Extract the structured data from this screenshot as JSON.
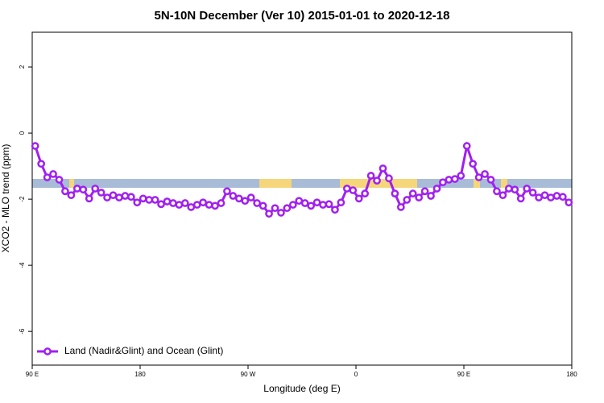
{
  "chart_data": {
    "type": "line",
    "title": "5N-10N December (Ver 10)   2015-01-01 to 2020-12-18",
    "x_label": "Longitude (deg E)",
    "y_label": "XCO2 - MLO trend (ppm)",
    "x": [
      92.5,
      97.5,
      102.5,
      107.5,
      112.5,
      117.5,
      122.5,
      127.5,
      132.5,
      137.5,
      142.5,
      147.5,
      152.5,
      157.5,
      162.5,
      167.5,
      172.5,
      177.5,
      182.5,
      187.5,
      192.5,
      197.5,
      202.5,
      207.5,
      212.5,
      217.5,
      222.5,
      227.5,
      232.5,
      237.5,
      242.5,
      247.5,
      252.5,
      257.5,
      262.5,
      267.5,
      272.5,
      277.5,
      282.5,
      287.5,
      292.5,
      297.5,
      302.5,
      307.5,
      312.5,
      317.5,
      322.5,
      327.5,
      332.5,
      337.5,
      342.5,
      347.5,
      352.5,
      357.5,
      362.5,
      367.5,
      372.5,
      377.5,
      382.5,
      387.5,
      392.5,
      397.5,
      402.5,
      407.5,
      412.5,
      417.5,
      422.5,
      427.5,
      432.5,
      437.5,
      442.5,
      447.5,
      452.5,
      457.5,
      462.5,
      467.5,
      472.5,
      477.5,
      482.5,
      487.5,
      492.5,
      497.5,
      502.5,
      507.5,
      512.5,
      517.5,
      522.5,
      527.5,
      532.5,
      537.5
    ],
    "series": [
      {
        "name": "Land (Nadir&Glint) and Ocean (Glint)",
        "color": "#a020f0",
        "values": [
          -0.39,
          -0.93,
          -1.34,
          -1.24,
          -1.41,
          -1.76,
          -1.88,
          -1.68,
          -1.71,
          -1.98,
          -1.68,
          -1.8,
          -1.95,
          -1.88,
          -1.95,
          -1.9,
          -1.93,
          -2.1,
          -1.98,
          -2.02,
          -2.02,
          -2.15,
          -2.07,
          -2.12,
          -2.17,
          -2.12,
          -2.24,
          -2.17,
          -2.1,
          -2.17,
          -2.2,
          -2.12,
          -1.76,
          -1.9,
          -1.98,
          -2.05,
          -1.95,
          -2.12,
          -2.2,
          -2.44,
          -2.27,
          -2.41,
          -2.27,
          -2.17,
          -2.05,
          -2.12,
          -2.2,
          -2.1,
          -2.17,
          -2.15,
          -2.32,
          -2.1,
          -1.68,
          -1.73,
          -1.98,
          -1.83,
          -1.29,
          -1.44,
          -1.07,
          -1.37,
          -1.83,
          -2.24,
          -2.02,
          -1.83,
          -1.95,
          -1.76,
          -1.9,
          -1.68,
          -1.49,
          -1.41,
          -1.39,
          -1.29,
          -0.39,
          -0.93,
          -1.34,
          -1.24,
          -1.41,
          -1.76,
          -1.88,
          -1.68,
          -1.71,
          -1.98,
          -1.68,
          -1.8,
          -1.95,
          -1.88,
          -1.95,
          -1.9,
          -1.93,
          -2.1
        ]
      }
    ],
    "xlim": [
      90,
      540
    ],
    "xticks": [
      {
        "value": 90,
        "label": "90 E"
      },
      {
        "value": 180,
        "label": "180"
      },
      {
        "value": 270,
        "label": "90 W"
      },
      {
        "value": 360,
        "label": "0"
      },
      {
        "value": 450,
        "label": "90 E"
      },
      {
        "value": 540,
        "label": "180"
      }
    ],
    "ylim": [
      -7.02,
      3.05
    ],
    "yticks": [
      -6,
      -4,
      -2,
      0,
      2
    ],
    "legend": "bottom-left"
  }
}
